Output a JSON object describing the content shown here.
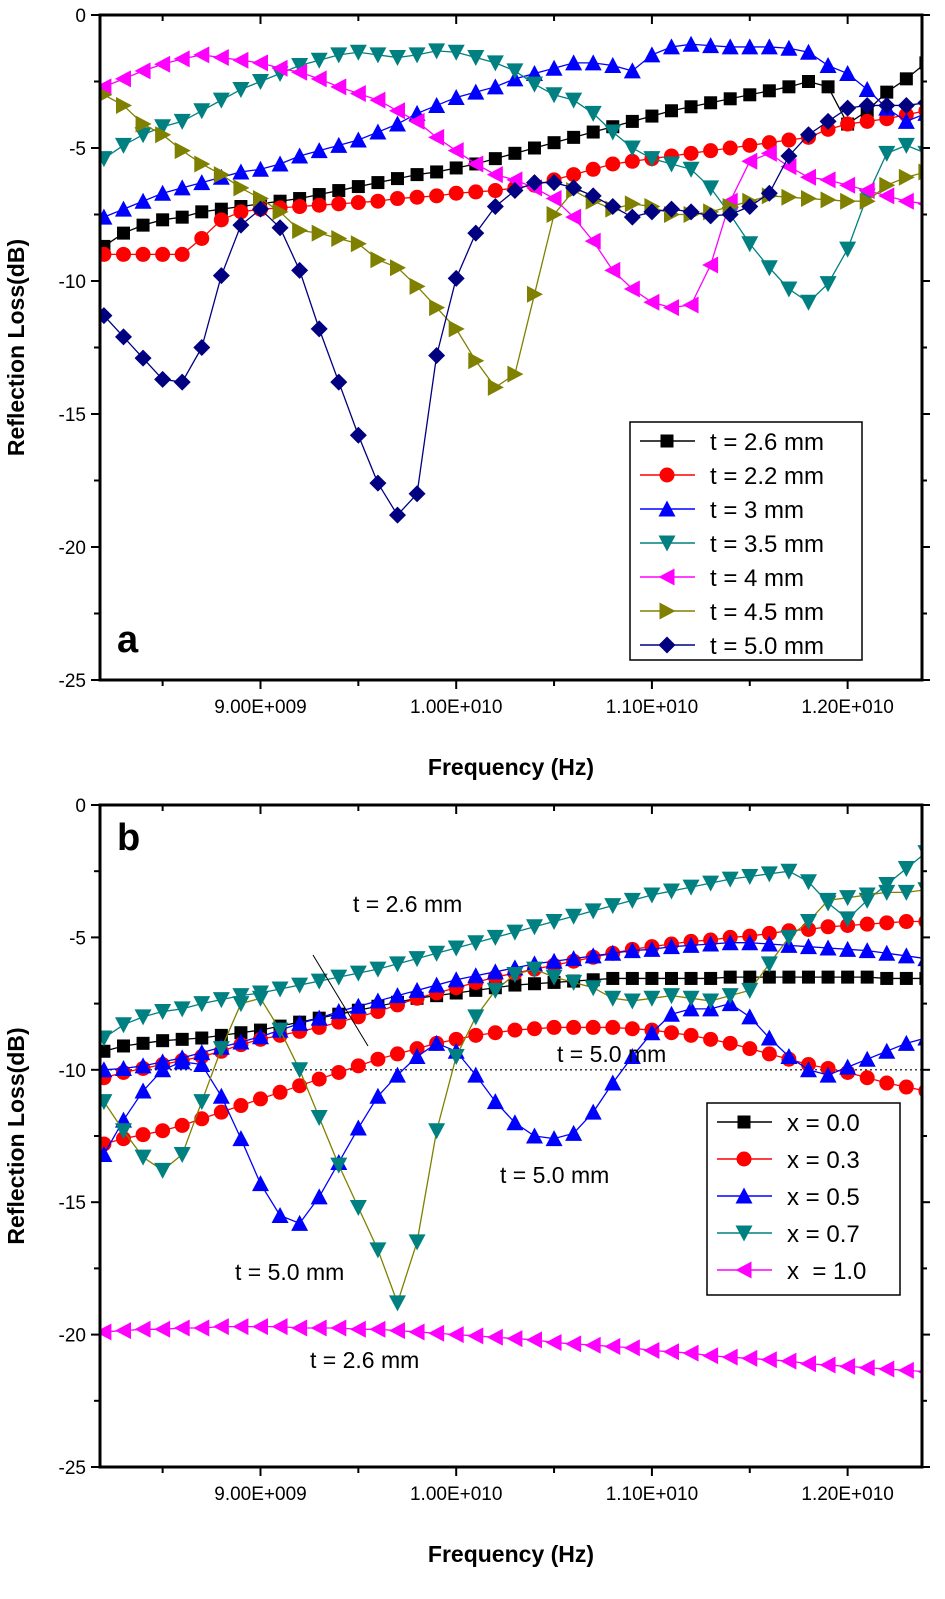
{
  "chart_data": [
    {
      "type": "line",
      "panel_label": "a",
      "xlabel": "Frequency (Hz)",
      "ylabel": "Reflection Loss(dB)",
      "xlim": [
        8180000000.0,
        12380000000.0
      ],
      "ylim": [
        -25,
        0
      ],
      "yticks": [
        0,
        -5,
        -10,
        -15,
        -20,
        -25
      ],
      "ytick_labels": [
        "0",
        "-5",
        "-10",
        "-15",
        "-20",
        "-25"
      ],
      "xticks": [
        9000000000.0,
        10000000000.0,
        11000000000.0,
        12000000000.0
      ],
      "xtick_labels": [
        "9.00E+009",
        "1.00E+010",
        "1.10E+010",
        "1.20E+010"
      ],
      "grid": false,
      "legend_position": "bottom-right",
      "x": [
        8200000000.0,
        8300000000.0,
        8400000000.0,
        8500000000.0,
        8600000000.0,
        8700000000.0,
        8800000000.0,
        8900000000.0,
        9000000000.0,
        9100000000.0,
        9200000000.0,
        9300000000.0,
        9400000000.0,
        9500000000.0,
        9600000000.0,
        9700000000.0,
        9800000000.0,
        9900000000.0,
        10000000000.0,
        10100000000.0,
        10200000000.0,
        10300000000.0,
        10400000000.0,
        10500000000.0,
        10600000000.0,
        10700000000.0,
        10800000000.0,
        10900000000.0,
        11000000000.0,
        11100000000.0,
        11200000000.0,
        11300000000.0,
        11400000000.0,
        11500000000.0,
        11600000000.0,
        11700000000.0,
        11800000000.0,
        11900000000.0,
        12000000000.0,
        12100000000.0,
        12200000000.0,
        12300000000.0,
        12400000000.0
      ],
      "series": [
        {
          "name": "t = 2.6 mm",
          "color": "#000000",
          "marker": "square",
          "values": [
            -8.7,
            -8.2,
            -7.9,
            -7.7,
            -7.6,
            -7.4,
            -7.3,
            -7.2,
            -7.1,
            -7.0,
            -6.9,
            -6.75,
            -6.6,
            -6.45,
            -6.3,
            -6.15,
            -6.0,
            -5.9,
            -5.75,
            -5.6,
            -5.4,
            -5.2,
            -5.0,
            -4.8,
            -4.6,
            -4.4,
            -4.2,
            -4.0,
            -3.8,
            -3.6,
            -3.45,
            -3.3,
            -3.15,
            -3.0,
            -2.85,
            -2.7,
            -2.5,
            -2.7,
            -4.1,
            -3.6,
            -2.9,
            -2.4,
            -1.8
          ]
        },
        {
          "name": "t = 2.2 mm",
          "color": "#ff0000",
          "marker": "circle",
          "values": [
            -9.0,
            -9.0,
            -9.0,
            -9.0,
            -9.0,
            -8.4,
            -7.7,
            -7.4,
            -7.3,
            -7.25,
            -7.2,
            -7.15,
            -7.1,
            -7.05,
            -7.0,
            -6.9,
            -6.85,
            -6.8,
            -6.7,
            -6.65,
            -6.6,
            -6.5,
            -6.4,
            -6.2,
            -6.0,
            -5.8,
            -5.6,
            -5.5,
            -5.4,
            -5.3,
            -5.2,
            -5.1,
            -5.0,
            -4.9,
            -4.8,
            -4.7,
            -4.6,
            -4.3,
            -4.1,
            -4.0,
            -3.9,
            -3.75,
            -3.6
          ]
        },
        {
          "name": "t = 3 mm",
          "color": "#0000ff",
          "marker": "triangle-up",
          "values": [
            -7.6,
            -7.3,
            -7.0,
            -6.7,
            -6.5,
            -6.3,
            -6.1,
            -5.9,
            -5.8,
            -5.6,
            -5.3,
            -5.1,
            -4.9,
            -4.7,
            -4.4,
            -4.1,
            -3.7,
            -3.4,
            -3.1,
            -2.9,
            -2.7,
            -2.4,
            -2.2,
            -2.0,
            -1.8,
            -1.8,
            -1.9,
            -2.1,
            -1.5,
            -1.2,
            -1.1,
            -1.15,
            -1.2,
            -1.2,
            -1.2,
            -1.25,
            -1.4,
            -1.9,
            -2.2,
            -2.8,
            -3.5,
            -4.0,
            -3.7
          ]
        },
        {
          "name": "t = 3.5 mm",
          "color": "#008080",
          "marker": "triangle-down",
          "values": [
            -5.4,
            -4.9,
            -4.5,
            -4.2,
            -4.0,
            -3.6,
            -3.2,
            -2.8,
            -2.5,
            -2.2,
            -1.9,
            -1.7,
            -1.5,
            -1.4,
            -1.5,
            -1.6,
            -1.5,
            -1.35,
            -1.4,
            -1.6,
            -1.8,
            -2.1,
            -2.6,
            -3.0,
            -3.2,
            -3.7,
            -4.4,
            -5.0,
            -5.4,
            -5.6,
            -5.8,
            -6.5,
            -7.5,
            -8.6,
            -9.5,
            -10.3,
            -10.8,
            -10.1,
            -8.8,
            -6.8,
            -5.2,
            -4.9,
            -5.2
          ]
        },
        {
          "name": "t = 4 mm",
          "color": "#ff00ff",
          "marker": "triangle-left",
          "values": [
            -2.7,
            -2.4,
            -2.1,
            -1.85,
            -1.65,
            -1.5,
            -1.6,
            -1.7,
            -1.8,
            -2.0,
            -2.15,
            -2.4,
            -2.7,
            -2.95,
            -3.2,
            -3.6,
            -4.0,
            -4.6,
            -5.1,
            -5.6,
            -6.0,
            -6.2,
            -6.5,
            -6.9,
            -7.6,
            -8.5,
            -9.6,
            -10.3,
            -10.8,
            -11.0,
            -10.9,
            -9.4,
            -7.0,
            -5.5,
            -5.2,
            -5.7,
            -6.1,
            -6.2,
            -6.4,
            -6.6,
            -6.8,
            -7.0,
            -7.1
          ]
        },
        {
          "name": "t = 4.5 mm",
          "color": "#808000",
          "marker": "triangle-right",
          "values": [
            -3.0,
            -3.4,
            -4.1,
            -4.5,
            -5.1,
            -5.6,
            -6.0,
            -6.5,
            -6.9,
            -7.4,
            -8.1,
            -8.2,
            -8.4,
            -8.6,
            -9.2,
            -9.5,
            -10.2,
            -11.0,
            -11.8,
            -13.0,
            -14.0,
            -13.5,
            -10.5,
            -7.5,
            -6.6,
            -7.0,
            -7.3,
            -7.1,
            -7.2,
            -7.5,
            -7.5,
            -7.4,
            -7.2,
            -7.0,
            -6.8,
            -6.85,
            -6.9,
            -6.95,
            -7.0,
            -7.0,
            -6.4,
            -6.1,
            -5.9
          ]
        },
        {
          "name": "t = 5.0 mm",
          "color": "#000080",
          "marker": "diamond",
          "values": [
            -11.3,
            -12.1,
            -12.9,
            -13.7,
            -13.8,
            -12.5,
            -9.8,
            -7.9,
            -7.3,
            -8.0,
            -9.6,
            -11.8,
            -13.8,
            -15.8,
            -17.6,
            -18.8,
            -18.0,
            -12.8,
            -9.9,
            -8.2,
            -7.2,
            -6.6,
            -6.3,
            -6.3,
            -6.5,
            -6.8,
            -7.2,
            -7.6,
            -7.4,
            -7.3,
            -7.4,
            -7.55,
            -7.5,
            -7.2,
            -6.7,
            -5.3,
            -4.5,
            -4.0,
            -3.5,
            -3.4,
            -3.4,
            -3.4,
            -3.3
          ]
        }
      ]
    },
    {
      "type": "line",
      "panel_label": "b",
      "xlabel": "Frequency (Hz)",
      "ylabel": "Reflection Loss(dB)",
      "xlim": [
        8180000000.0,
        12380000000.0
      ],
      "ylim": [
        -25,
        0
      ],
      "yticks": [
        0,
        -5,
        -10,
        -15,
        -20,
        -25
      ],
      "ytick_labels": [
        "0",
        "-5",
        "-10",
        "-15",
        "-20",
        "-25"
      ],
      "xticks": [
        9000000000.0,
        10000000000.0,
        11000000000.0,
        12000000000.0
      ],
      "xtick_labels": [
        "9.00E+009",
        "1.00E+010",
        "1.10E+010",
        "1.20E+010"
      ],
      "grid": false,
      "legend_position": "right",
      "reference_line": -10,
      "annotations": [
        "t = 2.6 mm",
        "t = 5.0 mm",
        "t = 5.0 mm",
        "t = 5.0 mm",
        "t = 2.6 mm"
      ],
      "x": [
        8200000000.0,
        8300000000.0,
        8400000000.0,
        8500000000.0,
        8600000000.0,
        8700000000.0,
        8800000000.0,
        8900000000.0,
        9000000000.0,
        9100000000.0,
        9200000000.0,
        9300000000.0,
        9400000000.0,
        9500000000.0,
        9600000000.0,
        9700000000.0,
        9800000000.0,
        9900000000.0,
        10000000000.0,
        10100000000.0,
        10200000000.0,
        10300000000.0,
        10400000000.0,
        10500000000.0,
        10600000000.0,
        10700000000.0,
        10800000000.0,
        10900000000.0,
        11000000000.0,
        11100000000.0,
        11200000000.0,
        11300000000.0,
        11400000000.0,
        11500000000.0,
        11600000000.0,
        11700000000.0,
        11800000000.0,
        11900000000.0,
        12000000000.0,
        12100000000.0,
        12200000000.0,
        12300000000.0,
        12400000000.0
      ],
      "series": [
        {
          "name": "x = 0.0",
          "color": "#000000",
          "marker": "square",
          "curves": [
            {
              "thickness": "t = 2.6 mm",
              "values": [
                -9.3,
                -9.1,
                -9.0,
                -8.9,
                -8.85,
                -8.8,
                -8.7,
                -8.6,
                -8.5,
                -8.35,
                -8.2,
                -8.05,
                -7.9,
                -7.75,
                -7.6,
                -7.45,
                -7.3,
                -7.2,
                -7.1,
                -7.0,
                -6.9,
                -6.8,
                -6.75,
                -6.7,
                -6.65,
                -6.6,
                -6.55,
                -6.55,
                -6.55,
                -6.55,
                -6.55,
                -6.55,
                -6.5,
                -6.5,
                -6.5,
                -6.5,
                -6.5,
                -6.5,
                -6.5,
                -6.5,
                -6.55,
                -6.55,
                -6.55
              ]
            }
          ]
        },
        {
          "name": "x = 0.3",
          "color": "#ff0000",
          "marker": "circle",
          "curves": [
            {
              "thickness": "t = 2.6 mm",
              "values": [
                -10.3,
                -10.1,
                -9.95,
                -9.8,
                -9.65,
                -9.5,
                -9.3,
                -9.05,
                -8.85,
                -8.7,
                -8.55,
                -8.4,
                -8.2,
                -8.0,
                -7.8,
                -7.55,
                -7.3,
                -7.1,
                -6.9,
                -6.7,
                -6.5,
                -6.35,
                -6.2,
                -6.05,
                -5.9,
                -5.75,
                -5.6,
                -5.45,
                -5.35,
                -5.25,
                -5.15,
                -5.1,
                -5.0,
                -4.95,
                -4.85,
                -4.75,
                -4.7,
                -4.6,
                -4.55,
                -4.5,
                -4.45,
                -4.4,
                -4.4
              ]
            },
            {
              "thickness": "t = 5.0 mm",
              "values": [
                -12.8,
                -12.6,
                -12.45,
                -12.3,
                -12.1,
                -11.85,
                -11.6,
                -11.35,
                -11.1,
                -10.85,
                -10.6,
                -10.35,
                -10.1,
                -9.85,
                -9.6,
                -9.4,
                -9.2,
                -9.0,
                -8.85,
                -8.7,
                -8.6,
                -8.5,
                -8.45,
                -8.4,
                -8.4,
                -8.4,
                -8.4,
                -8.45,
                -8.5,
                -8.6,
                -8.7,
                -8.85,
                -9.0,
                -9.2,
                -9.4,
                -9.6,
                -9.8,
                -9.95,
                -10.1,
                -10.3,
                -10.5,
                -10.65,
                -10.8
              ]
            }
          ]
        },
        {
          "name": "x = 0.5",
          "color": "#0000ff",
          "marker": "triangle-up",
          "curves": [
            {
              "thickness": "t = 2.6 mm",
              "values": [
                -10.0,
                -9.95,
                -9.85,
                -9.7,
                -9.55,
                -9.35,
                -9.15,
                -8.95,
                -8.75,
                -8.5,
                -8.25,
                -8.05,
                -7.8,
                -7.6,
                -7.4,
                -7.2,
                -7.0,
                -6.8,
                -6.6,
                -6.45,
                -6.3,
                -6.15,
                -6.0,
                -5.9,
                -5.8,
                -5.7,
                -5.6,
                -5.5,
                -5.45,
                -5.35,
                -5.3,
                -5.25,
                -5.2,
                -5.2,
                -5.25,
                -5.3,
                -5.35,
                -5.4,
                -5.45,
                -5.5,
                -5.6,
                -5.7,
                -5.8
              ]
            },
            {
              "thickness": "t = 5.0 mm",
              "values": [
                -13.2,
                -11.9,
                -10.8,
                -10.0,
                -9.7,
                -9.8,
                -11.0,
                -12.6,
                -14.3,
                -15.5,
                -15.8,
                -14.8,
                -13.5,
                -12.2,
                -11.0,
                -10.2,
                -9.5,
                -9.0,
                -9.3,
                -10.2,
                -11.2,
                -12.0,
                -12.5,
                -12.6,
                -12.4,
                -11.6,
                -10.5,
                -9.5,
                -8.6,
                -7.9,
                -7.7,
                -7.7,
                -7.5,
                -8.0,
                -8.8,
                -9.5,
                -10.0,
                -10.2,
                -9.9,
                -9.6,
                -9.3,
                -9.0,
                -8.8
              ]
            }
          ]
        },
        {
          "name": "x = 0.7",
          "color": "#008080",
          "marker": "triangle-down",
          "curves": [
            {
              "thickness": "t = 2.6 mm",
              "values": [
                -8.8,
                -8.3,
                -8.0,
                -7.8,
                -7.7,
                -7.5,
                -7.35,
                -7.2,
                -7.1,
                -6.95,
                -6.8,
                -6.65,
                -6.5,
                -6.35,
                -6.2,
                -6.0,
                -5.8,
                -5.6,
                -5.4,
                -5.2,
                -5.0,
                -4.8,
                -4.6,
                -4.4,
                -4.2,
                -4.0,
                -3.8,
                -3.6,
                -3.4,
                -3.25,
                -3.1,
                -2.95,
                -2.8,
                -2.7,
                -2.6,
                -2.5,
                -2.9,
                -3.7,
                -4.3,
                -3.6,
                -3.0,
                -2.4,
                -1.8
              ]
            },
            {
              "thickness": "t = 5.0 mm",
              "line_color": "#808000",
              "values": [
                -11.2,
                -12.3,
                -13.3,
                -13.8,
                -13.2,
                -11.2,
                -9.2,
                -7.5,
                -7.3,
                -8.5,
                -10.0,
                -11.8,
                -13.6,
                -15.2,
                -16.8,
                -18.8,
                -16.5,
                -12.3,
                -9.5,
                -8.0,
                -7.0,
                -6.4,
                -6.2,
                -6.5,
                -6.7,
                -6.9,
                -7.3,
                -7.4,
                -7.3,
                -7.2,
                -7.3,
                -7.4,
                -7.2,
                -7.0,
                -6.0,
                -5.0,
                -4.4,
                -3.6,
                -3.5,
                -3.4,
                -3.3,
                -3.3,
                -3.2
              ]
            }
          ]
        },
        {
          "name": "x  = 1.0",
          "color": "#ff00ff",
          "marker": "triangle-left",
          "curves": [
            {
              "thickness": "t = 2.6 mm",
              "values": [
                -19.9,
                -19.85,
                -19.8,
                -19.8,
                -19.75,
                -19.75,
                -19.7,
                -19.7,
                -19.7,
                -19.7,
                -19.75,
                -19.75,
                -19.75,
                -19.8,
                -19.8,
                -19.85,
                -19.9,
                -19.95,
                -20.0,
                -20.05,
                -20.1,
                -20.15,
                -20.2,
                -20.3,
                -20.35,
                -20.4,
                -20.45,
                -20.5,
                -20.6,
                -20.65,
                -20.7,
                -20.8,
                -20.85,
                -20.9,
                -20.95,
                -21.0,
                -21.1,
                -21.15,
                -21.2,
                -21.25,
                -21.3,
                -21.35,
                -21.4
              ]
            }
          ]
        }
      ]
    }
  ]
}
